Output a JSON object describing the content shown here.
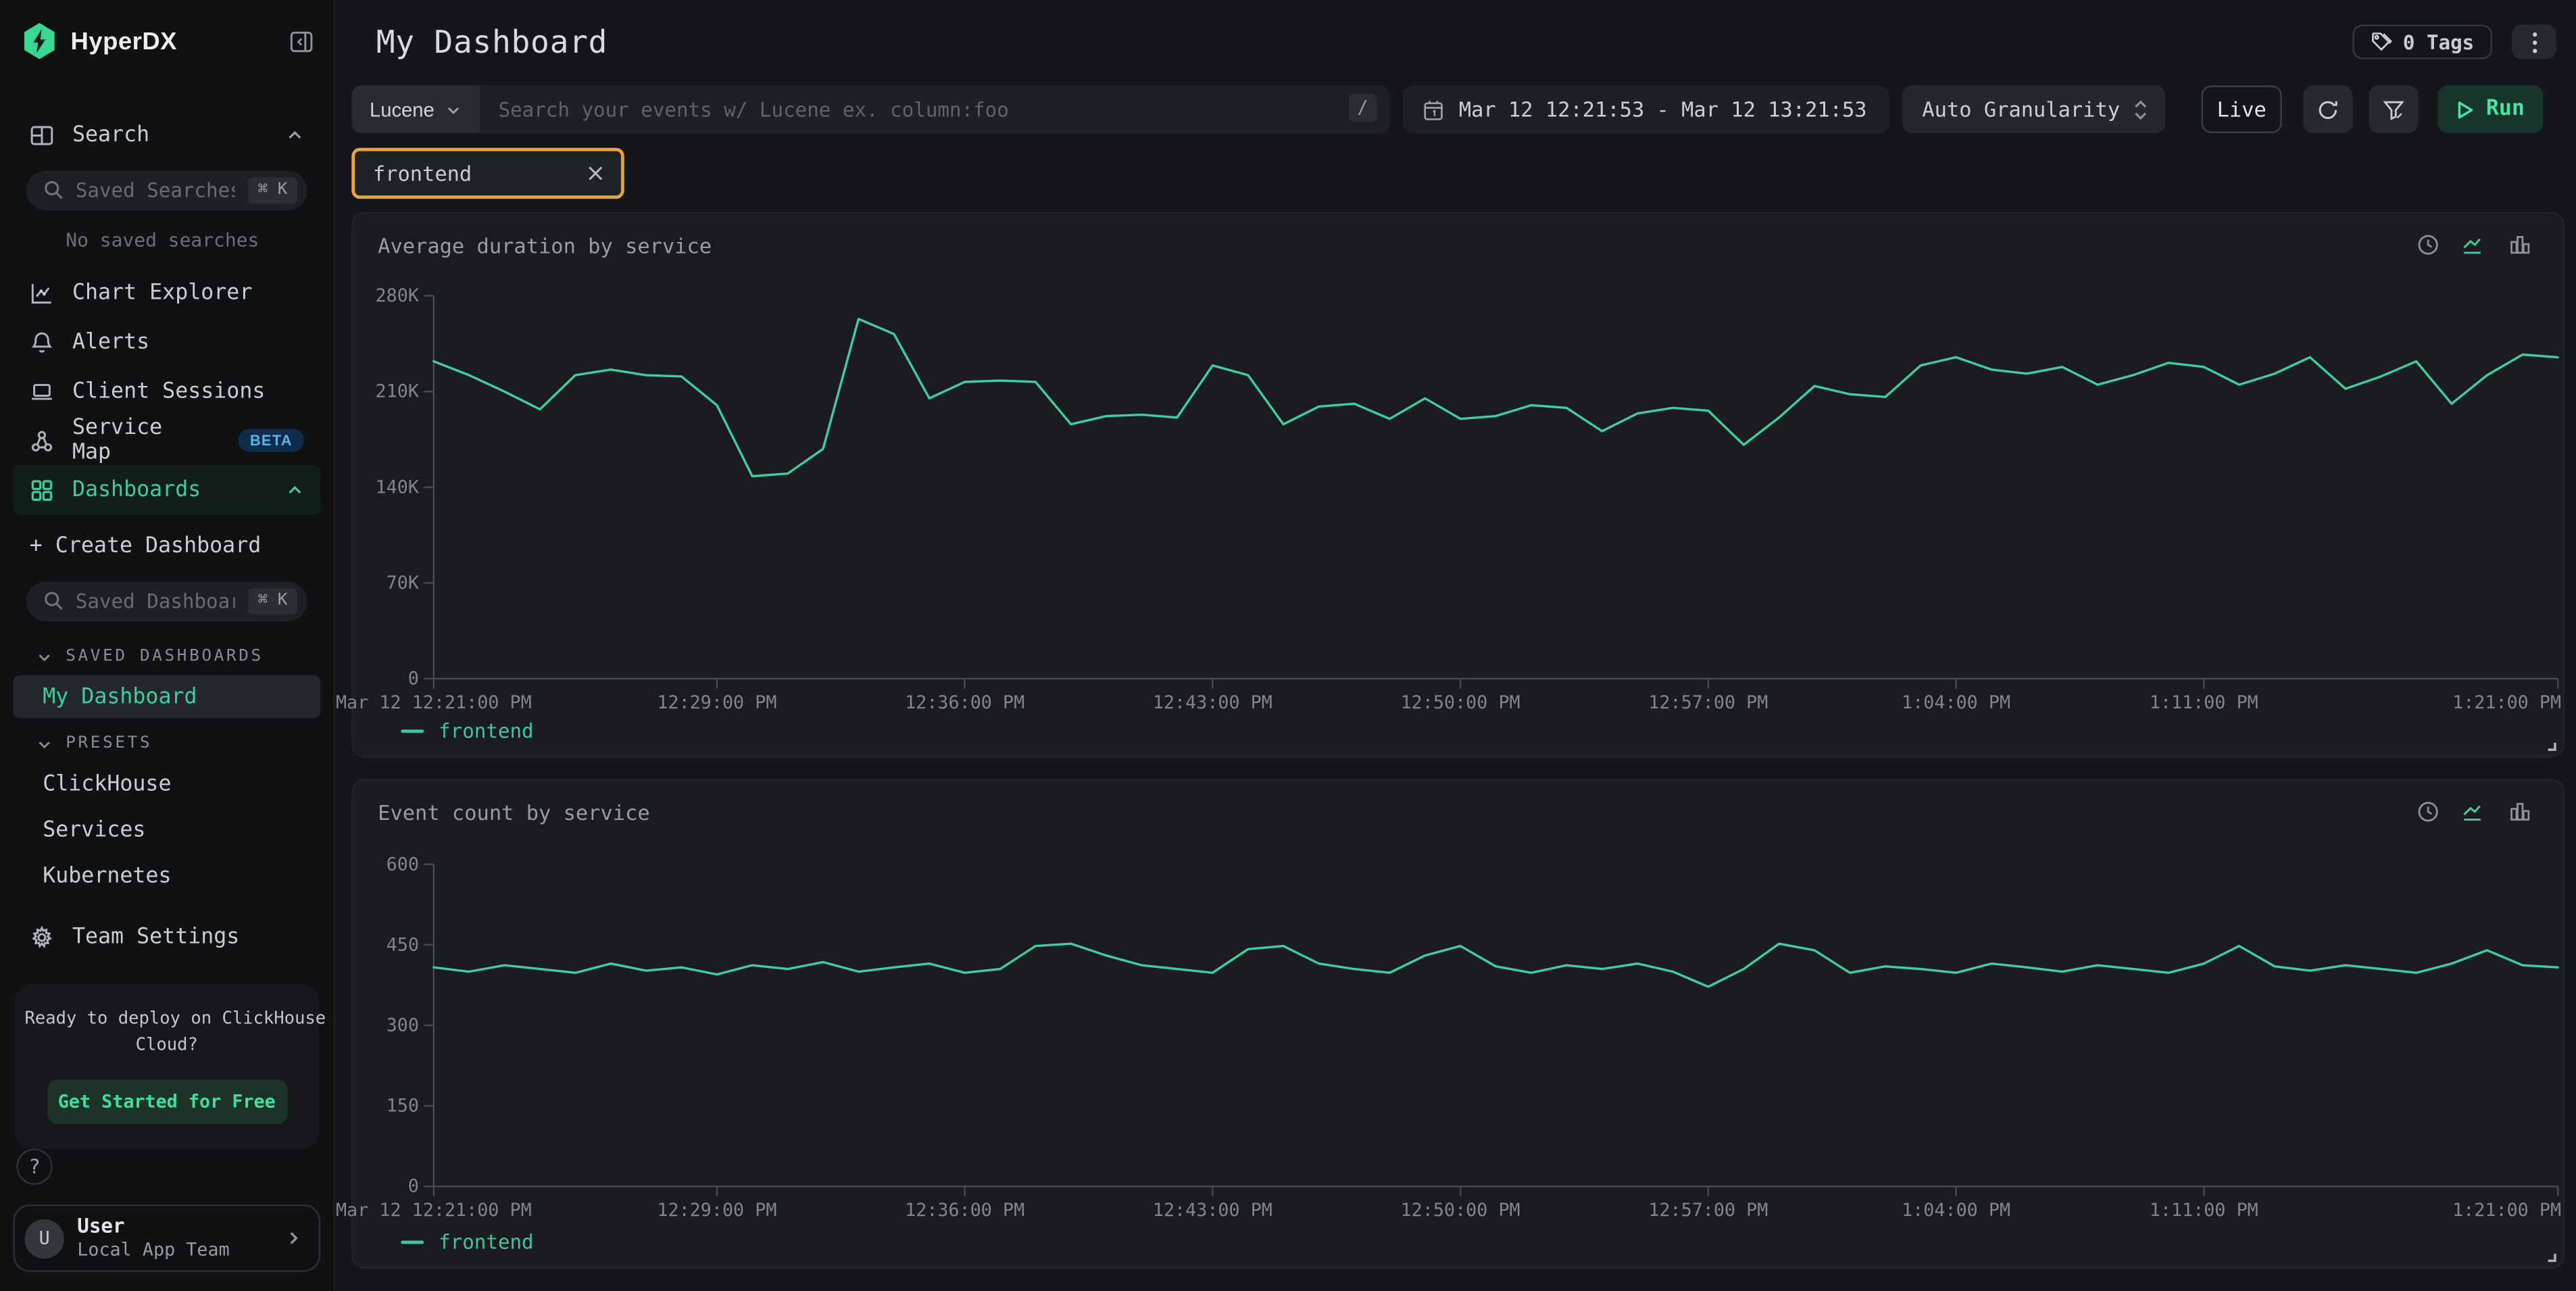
{
  "sidebar": {
    "logo_text": "HyperDX",
    "nav": {
      "search": "Search",
      "chart_explorer": "Chart Explorer",
      "alerts": "Alerts",
      "client_sessions": "Client Sessions",
      "service_map": "Service Map",
      "beta_badge": "BETA",
      "dashboards": "Dashboards",
      "create_dashboard": "+ Create Dashboard",
      "team_settings": "Team Settings"
    },
    "saved_searches_placeholder": "Saved Searches",
    "saved_dashboards_placeholder": "Saved Dashboards",
    "shortcut": "⌘ K",
    "no_saved_searches": "No saved searches",
    "sections": {
      "saved_dashboards": "SAVED DASHBOARDS",
      "presets": "PRESETS"
    },
    "saved_dashboard_items": [
      "My Dashboard"
    ],
    "preset_items": [
      "ClickHouse",
      "Services",
      "Kubernetes"
    ],
    "promo": {
      "line1": "Ready to deploy on ClickHouse",
      "line2": "Cloud?",
      "cta": "Get Started for Free"
    },
    "help_label": "?",
    "user": {
      "initial": "U",
      "name": "User",
      "team": "Local App Team"
    }
  },
  "header": {
    "title": "My Dashboard",
    "tags_button": "0 Tags"
  },
  "toolbar": {
    "language": "Lucene",
    "search_placeholder": "Search your events w/ Lucene ex. column:foo",
    "slash_key": "/",
    "date_range": "Mar 12 12:21:53 - Mar 12 13:21:53",
    "granularity": "Auto Granularity",
    "live": "Live",
    "run": "Run"
  },
  "filter_chip": {
    "label": "frontend"
  },
  "icons": {
    "header": [
      "tags-icon",
      "kebab-icon"
    ],
    "toolbar": [
      "chevron-down-icon",
      "calendar-icon",
      "selector-icon",
      "refresh-icon",
      "filter-icon",
      "play-icon"
    ],
    "chart_cards": [
      "clock-icon",
      "line-chart-icon",
      "bar-chart-icon",
      "resize-handle-icon"
    ]
  },
  "colors": {
    "accent_green": "#3ecf9c",
    "chip_orange": "#e9a33c",
    "beta_blue": "#58b2f0",
    "axis": "#464b51",
    "tick_text": "#80868d"
  },
  "chart_data": [
    {
      "type": "line",
      "title": "Average duration by service",
      "xlim_minutes": [
        0,
        60
      ],
      "ylim": [
        0,
        280000
      ],
      "grid": false,
      "legend_position": "bottom-left",
      "y_ticks": [
        {
          "v": 0,
          "label": "0"
        },
        {
          "v": 70000,
          "label": "70K"
        },
        {
          "v": 140000,
          "label": "140K"
        },
        {
          "v": 210000,
          "label": "210K"
        },
        {
          "v": 280000,
          "label": "280K"
        }
      ],
      "x_ticks": [
        {
          "m": 0,
          "label": "Mar 12 12:21:00 PM"
        },
        {
          "m": 8,
          "label": "12:29:00 PM"
        },
        {
          "m": 15,
          "label": "12:36:00 PM"
        },
        {
          "m": 22,
          "label": "12:43:00 PM"
        },
        {
          "m": 29,
          "label": "12:50:00 PM"
        },
        {
          "m": 36,
          "label": "12:57:00 PM"
        },
        {
          "m": 43,
          "label": "1:04:00 PM"
        },
        {
          "m": 50,
          "label": "1:11:00 PM"
        },
        {
          "m": 60,
          "label": "1:21:00 PM",
          "anchor": "end"
        }
      ],
      "series": [
        {
          "name": "frontend",
          "color": "#3ecf9c",
          "x_minutes": [
            0,
            1,
            2,
            3,
            4,
            5,
            6,
            7,
            8,
            9,
            10,
            11,
            12,
            13,
            14,
            15,
            16,
            17,
            18,
            19,
            20,
            21,
            22,
            23,
            24,
            25,
            26,
            27,
            28,
            29,
            30,
            31,
            32,
            33,
            34,
            35,
            36,
            37,
            38,
            39,
            40,
            41,
            42,
            43,
            44,
            45,
            46,
            47,
            48,
            49,
            50,
            51,
            52,
            53,
            54,
            55,
            56,
            57,
            58,
            59,
            60
          ],
          "values": [
            232000,
            222000,
            210000,
            197000,
            222000,
            226000,
            222000,
            221000,
            200000,
            148000,
            150000,
            168000,
            263000,
            252000,
            205000,
            217000,
            218000,
            217000,
            186000,
            192000,
            193000,
            191000,
            229000,
            222000,
            186000,
            199000,
            201000,
            190000,
            205000,
            190000,
            192000,
            200000,
            198000,
            181000,
            194000,
            198000,
            196000,
            171000,
            191000,
            214000,
            208000,
            206000,
            229000,
            235000,
            226000,
            223000,
            228000,
            215000,
            222000,
            231000,
            228000,
            215000,
            223000,
            235000,
            212000,
            221000,
            232000,
            201000,
            222000,
            237000,
            235000
          ]
        }
      ]
    },
    {
      "type": "line",
      "title": "Event count by service",
      "xlim_minutes": [
        0,
        60
      ],
      "ylim": [
        0,
        600
      ],
      "grid": false,
      "legend_position": "bottom-left",
      "y_ticks": [
        {
          "v": 0,
          "label": "0"
        },
        {
          "v": 150,
          "label": "150"
        },
        {
          "v": 300,
          "label": "300"
        },
        {
          "v": 450,
          "label": "450"
        },
        {
          "v": 600,
          "label": "600"
        }
      ],
      "x_ticks": [
        {
          "m": 0,
          "label": "Mar 12 12:21:00 PM"
        },
        {
          "m": 8,
          "label": "12:29:00 PM"
        },
        {
          "m": 15,
          "label": "12:36:00 PM"
        },
        {
          "m": 22,
          "label": "12:43:00 PM"
        },
        {
          "m": 29,
          "label": "12:50:00 PM"
        },
        {
          "m": 36,
          "label": "12:57:00 PM"
        },
        {
          "m": 43,
          "label": "1:04:00 PM"
        },
        {
          "m": 50,
          "label": "1:11:00 PM"
        },
        {
          "m": 60,
          "label": "1:21:00 PM",
          "anchor": "end"
        }
      ],
      "series": [
        {
          "name": "frontend",
          "color": "#3ecf9c",
          "x_minutes": [
            0,
            1,
            2,
            3,
            4,
            5,
            6,
            7,
            8,
            9,
            10,
            11,
            12,
            13,
            14,
            15,
            16,
            17,
            18,
            19,
            20,
            21,
            22,
            23,
            24,
            25,
            26,
            27,
            28,
            29,
            30,
            31,
            32,
            33,
            34,
            35,
            36,
            37,
            38,
            39,
            40,
            41,
            42,
            43,
            44,
            45,
            46,
            47,
            48,
            49,
            50,
            51,
            52,
            53,
            54,
            55,
            56,
            57,
            58,
            59,
            60
          ],
          "values": [
            408,
            400,
            412,
            405,
            398,
            415,
            402,
            408,
            395,
            412,
            405,
            418,
            400,
            408,
            415,
            398,
            405,
            448,
            452,
            430,
            412,
            405,
            398,
            442,
            448,
            415,
            405,
            398,
            430,
            448,
            410,
            398,
            412,
            405,
            415,
            400,
            372,
            405,
            452,
            440,
            398,
            410,
            405,
            398,
            415,
            408,
            400,
            412,
            405,
            398,
            415,
            448,
            410,
            402,
            412,
            405,
            398,
            415,
            440,
            412,
            408
          ]
        }
      ]
    }
  ]
}
